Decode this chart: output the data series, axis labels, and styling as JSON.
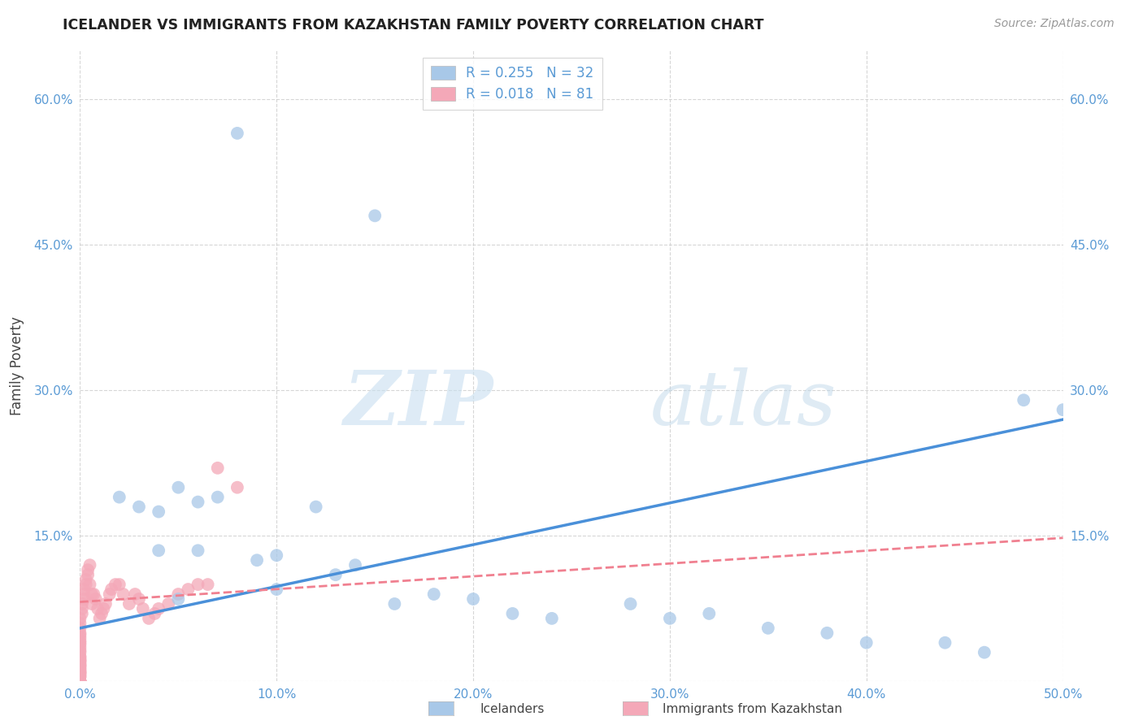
{
  "title": "ICELANDER VS IMMIGRANTS FROM KAZAKHSTAN FAMILY POVERTY CORRELATION CHART",
  "source": "Source: ZipAtlas.com",
  "ylabel": "Family Poverty",
  "xlim": [
    0.0,
    0.5
  ],
  "ylim": [
    0.0,
    0.65
  ],
  "xticks": [
    0.0,
    0.1,
    0.2,
    0.3,
    0.4,
    0.5
  ],
  "yticks": [
    0.0,
    0.15,
    0.3,
    0.45,
    0.6
  ],
  "xtick_labels": [
    "0.0%",
    "10.0%",
    "20.0%",
    "30.0%",
    "40.0%",
    "50.0%"
  ],
  "ytick_labels": [
    "",
    "15.0%",
    "30.0%",
    "45.0%",
    "60.0%"
  ],
  "legend_label1": "Icelanders",
  "legend_label2": "Immigrants from Kazakhstan",
  "R1": 0.255,
  "N1": 32,
  "R2": 0.018,
  "N2": 81,
  "color1": "#a8c8e8",
  "color2": "#f4a8b8",
  "line1_color": "#4a90d9",
  "line2_color": "#f08090",
  "background_color": "#ffffff",
  "grid_color": "#cccccc",
  "watermark_zip": "ZIP",
  "watermark_atlas": "atlas",
  "icelanders_x": [
    0.08,
    0.15,
    0.02,
    0.04,
    0.03,
    0.05,
    0.06,
    0.04,
    0.07,
    0.06,
    0.09,
    0.1,
    0.12,
    0.13,
    0.1,
    0.14,
    0.05,
    0.16,
    0.18,
    0.2,
    0.22,
    0.24,
    0.28,
    0.3,
    0.32,
    0.35,
    0.38,
    0.4,
    0.44,
    0.46,
    0.48,
    0.5
  ],
  "icelanders_y": [
    0.565,
    0.48,
    0.19,
    0.175,
    0.18,
    0.2,
    0.185,
    0.135,
    0.19,
    0.135,
    0.125,
    0.13,
    0.18,
    0.11,
    0.095,
    0.12,
    0.085,
    0.08,
    0.09,
    0.085,
    0.07,
    0.065,
    0.08,
    0.065,
    0.07,
    0.055,
    0.05,
    0.04,
    0.04,
    0.03,
    0.29,
    0.28
  ],
  "kazakhstan_x": [
    0.0,
    0.0,
    0.0,
    0.0,
    0.0,
    0.0,
    0.0,
    0.0,
    0.0,
    0.0,
    0.0,
    0.0,
    0.0,
    0.0,
    0.0,
    0.0,
    0.0,
    0.0,
    0.0,
    0.0,
    0.0,
    0.0,
    0.0,
    0.0,
    0.0,
    0.0,
    0.0,
    0.0,
    0.0,
    0.0,
    0.0,
    0.0,
    0.0,
    0.0,
    0.0,
    0.0,
    0.0,
    0.0,
    0.0,
    0.0,
    0.0,
    0.001,
    0.001,
    0.001,
    0.002,
    0.002,
    0.002,
    0.003,
    0.003,
    0.004,
    0.004,
    0.005,
    0.005,
    0.006,
    0.006,
    0.007,
    0.008,
    0.009,
    0.01,
    0.011,
    0.012,
    0.013,
    0.015,
    0.016,
    0.018,
    0.02,
    0.022,
    0.025,
    0.028,
    0.03,
    0.032,
    0.035,
    0.038,
    0.04,
    0.045,
    0.05,
    0.055,
    0.06,
    0.065,
    0.07,
    0.08
  ],
  "kazakhstan_y": [
    0.0,
    0.0,
    0.0,
    0.0,
    0.0,
    0.0,
    0.0,
    0.0,
    0.0,
    0.0,
    0.005,
    0.005,
    0.007,
    0.008,
    0.009,
    0.01,
    0.01,
    0.012,
    0.013,
    0.015,
    0.016,
    0.017,
    0.018,
    0.02,
    0.021,
    0.022,
    0.023,
    0.025,
    0.026,
    0.03,
    0.032,
    0.035,
    0.038,
    0.04,
    0.042,
    0.045,
    0.048,
    0.05,
    0.055,
    0.06,
    0.065,
    0.07,
    0.075,
    0.08,
    0.085,
    0.09,
    0.095,
    0.1,
    0.105,
    0.11,
    0.115,
    0.1,
    0.12,
    0.09,
    0.08,
    0.09,
    0.085,
    0.075,
    0.065,
    0.07,
    0.075,
    0.08,
    0.09,
    0.095,
    0.1,
    0.1,
    0.09,
    0.08,
    0.09,
    0.085,
    0.075,
    0.065,
    0.07,
    0.075,
    0.08,
    0.09,
    0.095,
    0.1,
    0.1,
    0.22,
    0.2
  ],
  "line1_x0": 0.0,
  "line1_y0": 0.055,
  "line1_x1": 0.5,
  "line1_y1": 0.27,
  "line2_x0": 0.0,
  "line2_y0": 0.082,
  "line2_x1": 0.5,
  "line2_y1": 0.148
}
